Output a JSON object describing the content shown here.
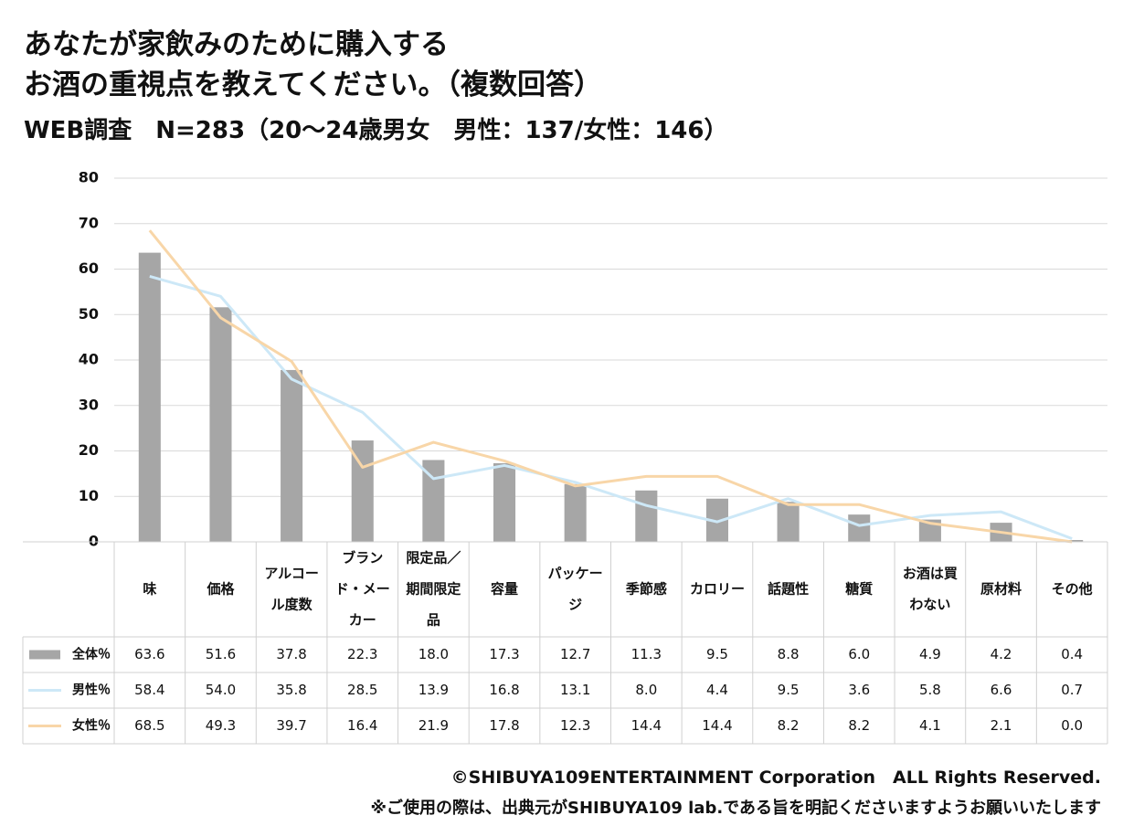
{
  "title_line1": "あなたが家飲みのために購入する",
  "title_line2": "お酒の重視点を教えてください。（複数回答）",
  "subtitle": "WEB調査　N=283（20～24歳男女　男性：137/女性：146）",
  "chart_data": {
    "type": "bar",
    "categories": [
      "味",
      "価格",
      "アルコール度数",
      "ブランド・メーカー",
      "限定品／期間限定品",
      "容量",
      "パッケージ",
      "季節感",
      "カロリー",
      "話題性",
      "糖質",
      "お酒は買わない",
      "原材料",
      "その他"
    ],
    "category_lines": [
      [
        "味"
      ],
      [
        "価格"
      ],
      [
        "アルコー",
        "ル度数"
      ],
      [
        "ブラン",
        "ド・メー",
        "カー"
      ],
      [
        "限定品／",
        "期間限定",
        "品"
      ],
      [
        "容量"
      ],
      [
        "パッケー",
        "ジ"
      ],
      [
        "季節感"
      ],
      [
        "カロリー"
      ],
      [
        "話題性"
      ],
      [
        "糖質"
      ],
      [
        "お酒は買",
        "わない"
      ],
      [
        "原材料"
      ],
      [
        "その他"
      ]
    ],
    "series": [
      {
        "name": "全体％",
        "kind": "bar",
        "color": "#a6a6a6",
        "values": [
          63.6,
          51.6,
          37.8,
          22.3,
          18.0,
          17.3,
          12.7,
          11.3,
          9.5,
          8.8,
          6.0,
          4.9,
          4.2,
          0.4
        ]
      },
      {
        "name": "男性％",
        "kind": "line",
        "color": "#cde8f7",
        "values": [
          58.4,
          54.0,
          35.8,
          28.5,
          13.9,
          16.8,
          13.1,
          8.0,
          4.4,
          9.5,
          3.6,
          5.8,
          6.6,
          0.7
        ]
      },
      {
        "name": "女性％",
        "kind": "line",
        "color": "#f8d6a8",
        "values": [
          68.5,
          49.3,
          39.7,
          16.4,
          21.9,
          17.8,
          12.3,
          14.4,
          14.4,
          8.2,
          8.2,
          4.1,
          2.1,
          0.0
        ]
      }
    ],
    "ylim": [
      0,
      80
    ],
    "yticks": [
      0,
      10,
      20,
      30,
      40,
      50,
      60,
      70,
      80
    ],
    "grid": true,
    "legend": "data-table"
  },
  "copyright": "©SHIBUYA109ENTERTAINMENT Corporation　ALL Rights Reserved.",
  "notice": "※ご使用の際は、出典元がSHIBUYA109 lab.である旨を明記くださいますようお願いいたします"
}
